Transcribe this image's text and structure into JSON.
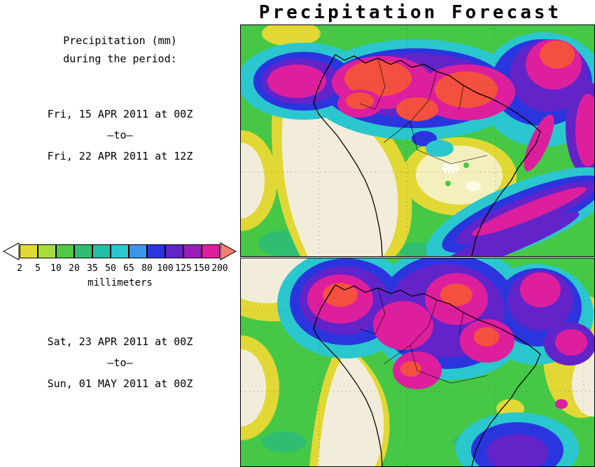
{
  "title": "Precipitation Forecast",
  "sidebar": {
    "heading_line1": "Precipitation (mm)",
    "heading_line2": "during the period:",
    "period1": {
      "start": "Fri, 15 APR 2011 at 00Z",
      "separator": "–to–",
      "end": "Fri, 22 APR 2011 at 12Z"
    },
    "period2": {
      "start": "Sat, 23 APR 2011 at 00Z",
      "separator": "–to–",
      "end": "Sun, 01 MAY 2011 at 00Z"
    }
  },
  "colorbar": {
    "unit_label": "millimeters",
    "ticks": [
      "2",
      "5",
      "10",
      "20",
      "35",
      "50",
      "65",
      "80",
      "100",
      "125",
      "150",
      "200"
    ],
    "colors": [
      "#E2D835",
      "#A8DC3C",
      "#52C944",
      "#2FBE71",
      "#25BDA4",
      "#2BC7CE",
      "#3A96E8",
      "#2A35DE",
      "#6224C9",
      "#9A1FB9",
      "#DD1F9E"
    ],
    "underflow_color": "#FFFFFF",
    "overflow_color": "#F97E72"
  },
  "chart_data": {
    "type": "heatmap",
    "title": "Precipitation Forecast",
    "legend": {
      "label": "millimeters",
      "position": "left-middle",
      "thresholds": [
        2,
        5,
        10,
        20,
        35,
        50,
        65,
        80,
        100,
        125,
        150,
        200
      ]
    },
    "panels": [
      {
        "region": "South America",
        "period_start": "Fri, 15 APR 2011 at 00Z",
        "period_end": "Fri, 22 APR 2011 at 12Z",
        "summary": "Heavy precipitation (100-200+ mm) band across northern South America / Amazon and ITCZ; dry zone (<2 mm) along Pacific coast of Peru-Chile and eastern interior Brazil; 65-150 mm frontal band over southeast Brazil / South Atlantic; 5-20 mm over remaining areas"
      },
      {
        "region": "South America",
        "period_start": "Sat, 23 APR 2011 at 00Z",
        "period_end": "Sun, 01 MAY 2011 at 00Z",
        "summary": "Clustered 100-200+ mm cells over Colombia, Venezuela and the western/central Amazon ringed by 65-125 mm; dry (<2 mm) Pacific coastal strip and far northwest corner; 2-10 mm in east; 65-125 mm cell near southern Brazil coast"
      }
    ]
  }
}
